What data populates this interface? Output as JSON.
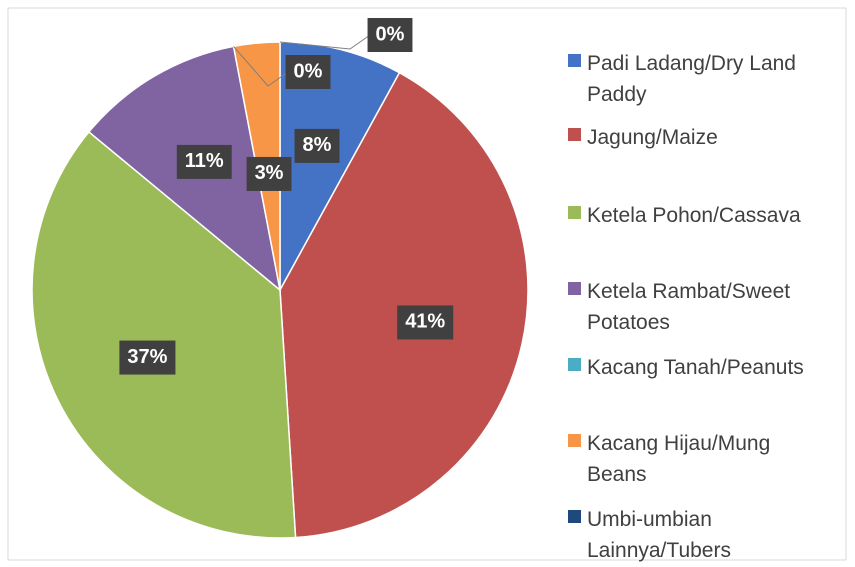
{
  "chart_data": {
    "type": "pie",
    "categories": [
      "Padi Ladang/Dry Land Paddy",
      "Jagung/Maize",
      "Ketela Pohon/Cassava",
      "Ketela Rambat/Sweet Potatoes",
      "Kacang Tanah/Peanuts",
      "Kacang Hijau/Mung Beans",
      "Umbi-umbian Lainnya/Tubers"
    ],
    "values": [
      8,
      41,
      37,
      11,
      0,
      3,
      0
    ],
    "value_labels": [
      "8%",
      "41%",
      "37%",
      "11%",
      "0%",
      "3%",
      "0%"
    ],
    "colors": [
      "#4472c4",
      "#c0504d",
      "#9bbb59",
      "#8064a2",
      "#4bacc6",
      "#f79646",
      "#1f497d"
    ],
    "legend": "right"
  }
}
